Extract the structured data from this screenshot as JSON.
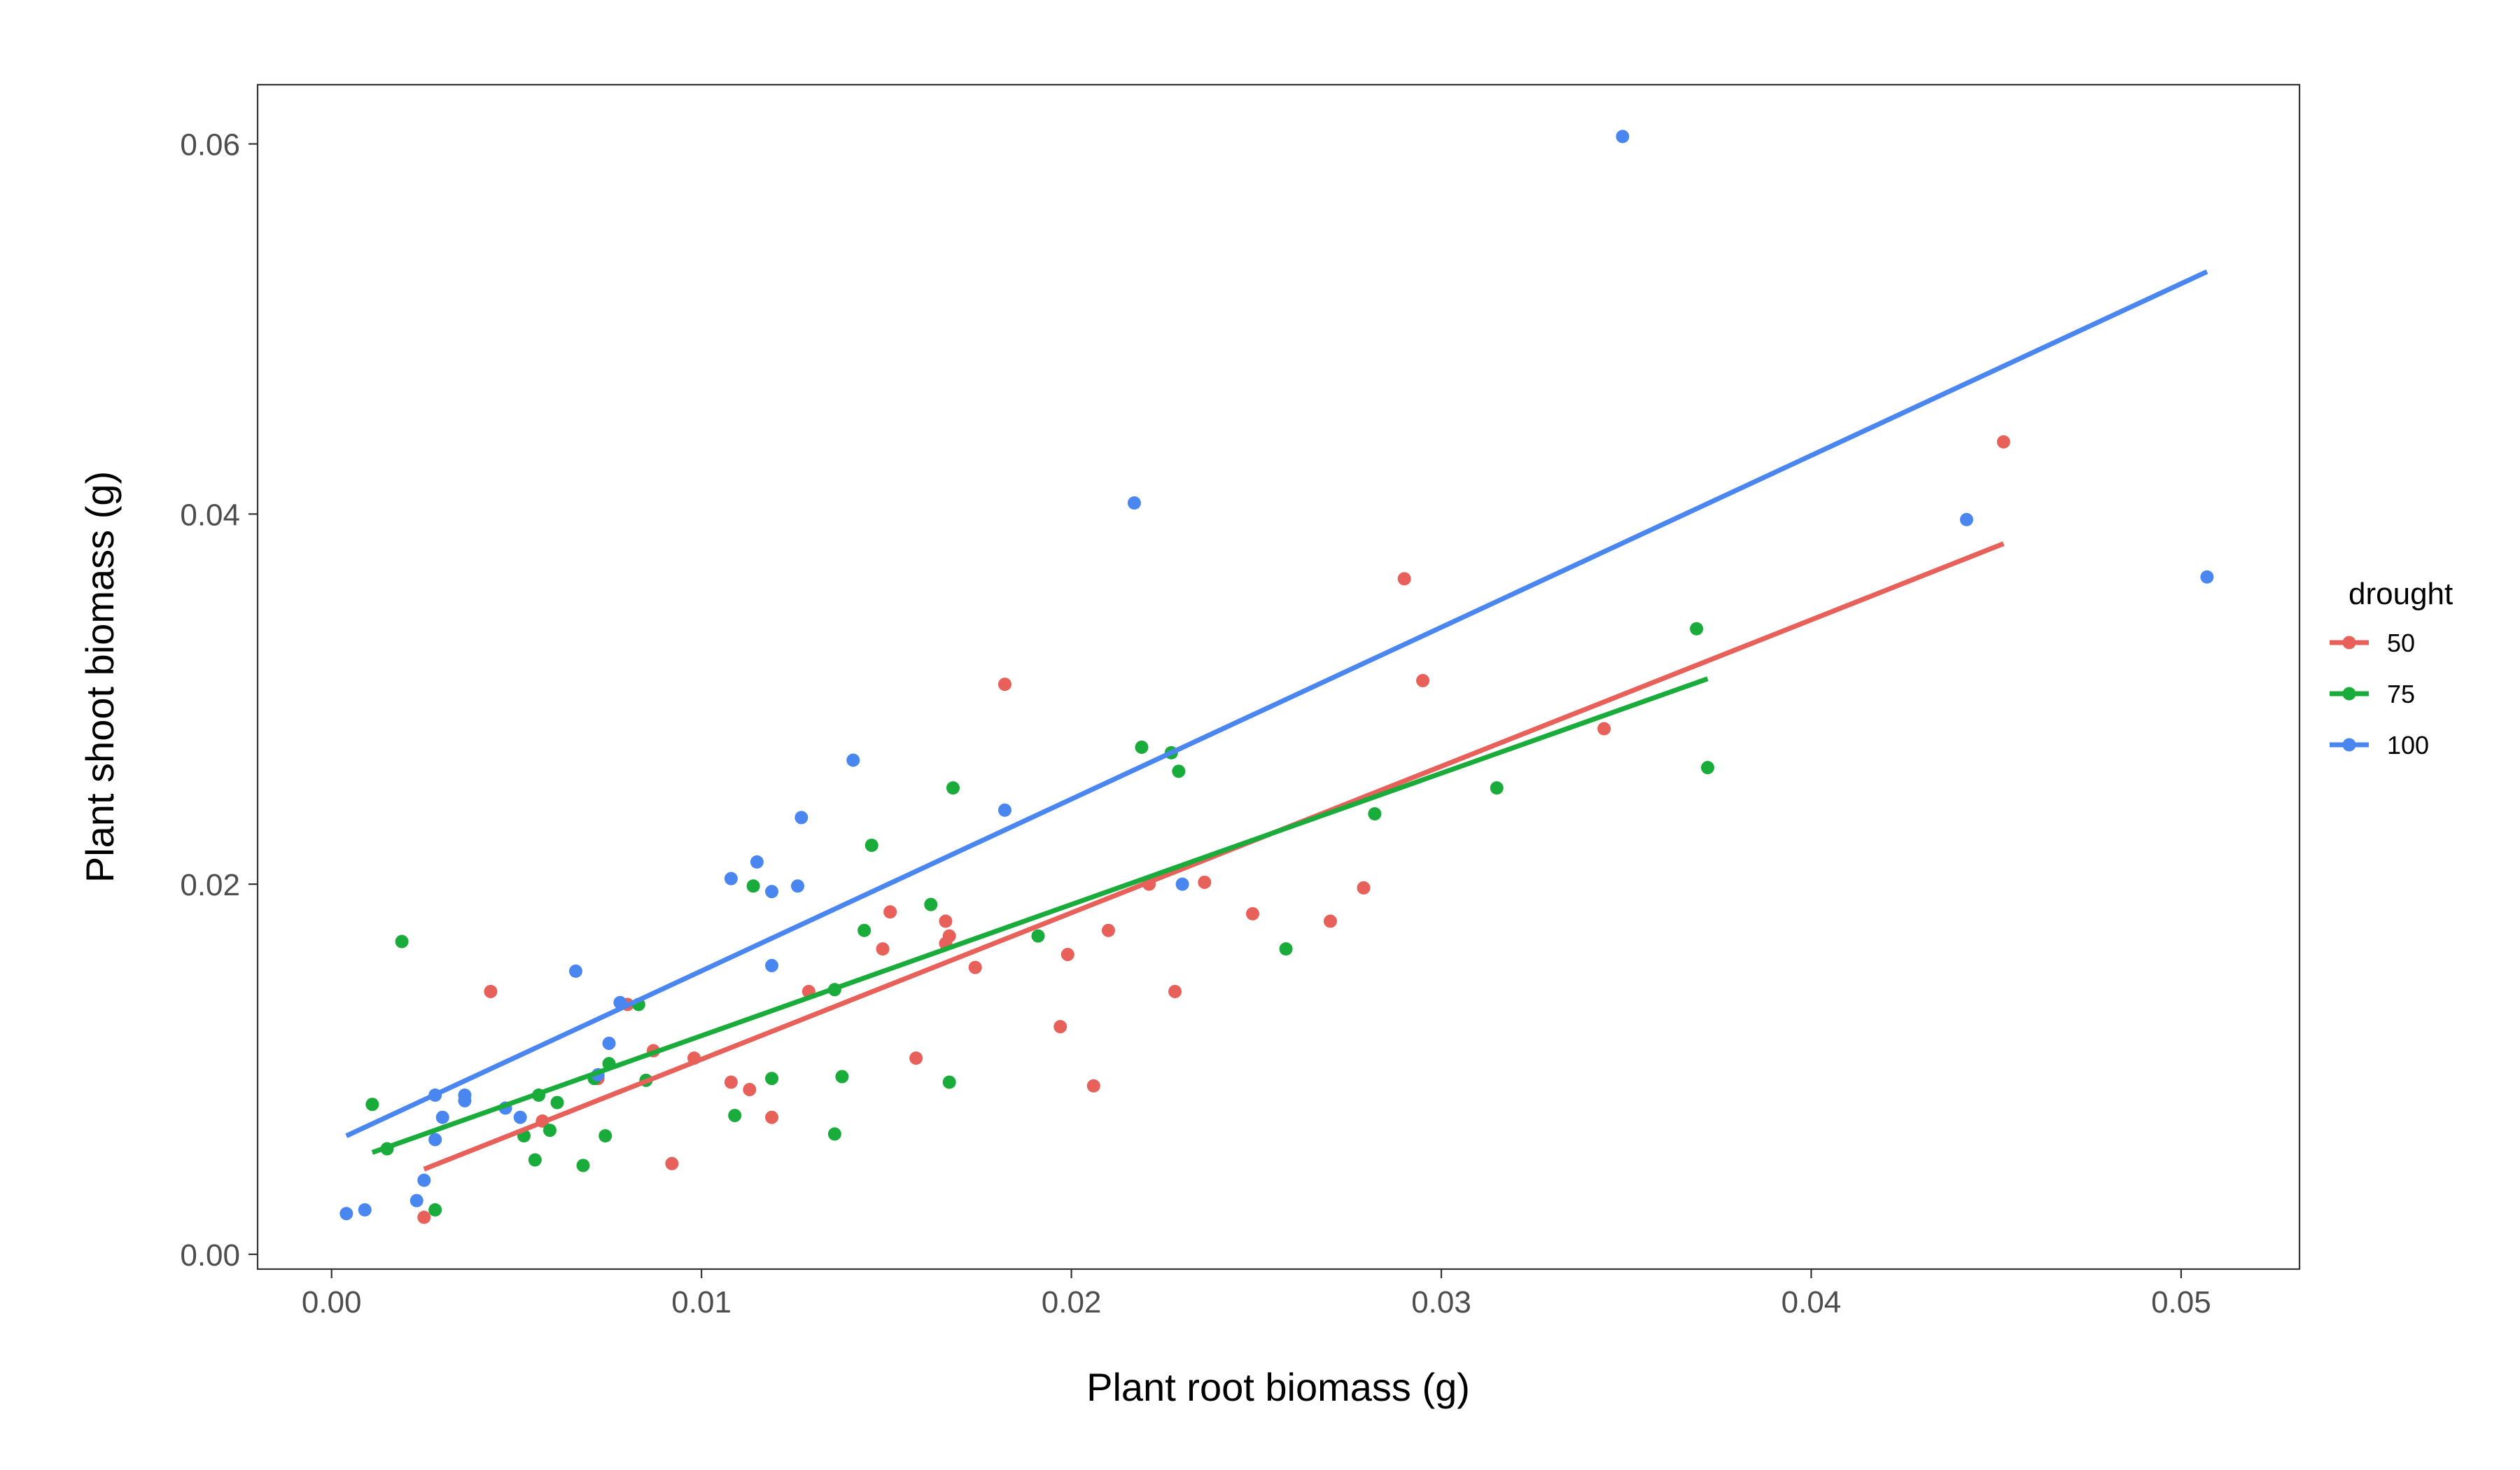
{
  "chart_data": {
    "type": "scatter",
    "title": "",
    "xlabel": "Plant root biomass (g)",
    "ylabel": "Plant shoot biomass (g)",
    "xlim": [
      -0.002,
      0.0532
    ],
    "ylim": [
      -0.0008,
      0.0632
    ],
    "xticks": [
      0,
      0.01,
      0.02,
      0.03,
      0.04,
      0.05
    ],
    "xtick_labels": [
      "0.00",
      "0.01",
      "0.02",
      "0.03",
      "0.04",
      "0.05"
    ],
    "yticks": [
      0,
      0.02,
      0.04,
      0.06
    ],
    "ytick_labels": [
      "0.00",
      "0.02",
      "0.04",
      "0.06"
    ],
    "grid": false,
    "legend": {
      "title": "drought",
      "position": "right"
    },
    "series": [
      {
        "name": "50",
        "color": "#e8605a",
        "points": [
          [
            0.0025,
            0.002
          ],
          [
            0.0043,
            0.0142
          ],
          [
            0.0057,
            0.0072
          ],
          [
            0.0072,
            0.0095
          ],
          [
            0.008,
            0.0135
          ],
          [
            0.0087,
            0.011
          ],
          [
            0.0092,
            0.0049
          ],
          [
            0.0098,
            0.0106
          ],
          [
            0.0108,
            0.0093
          ],
          [
            0.0113,
            0.0089
          ],
          [
            0.0119,
            0.0074
          ],
          [
            0.0129,
            0.0142
          ],
          [
            0.0149,
            0.0165
          ],
          [
            0.0151,
            0.0185
          ],
          [
            0.0158,
            0.0106
          ],
          [
            0.0166,
            0.018
          ],
          [
            0.0166,
            0.0168
          ],
          [
            0.0167,
            0.0172
          ],
          [
            0.0174,
            0.0155
          ],
          [
            0.0182,
            0.0308
          ],
          [
            0.0197,
            0.0123
          ],
          [
            0.0199,
            0.0162
          ],
          [
            0.0206,
            0.0091
          ],
          [
            0.021,
            0.0175
          ],
          [
            0.0221,
            0.02
          ],
          [
            0.0228,
            0.0142
          ],
          [
            0.0236,
            0.0201
          ],
          [
            0.0249,
            0.0184
          ],
          [
            0.027,
            0.018
          ],
          [
            0.0279,
            0.0198
          ],
          [
            0.029,
            0.0365
          ],
          [
            0.0295,
            0.031
          ],
          [
            0.0344,
            0.0284
          ],
          [
            0.0452,
            0.0439
          ]
        ],
        "trend": [
          [
            0.0025,
            0.0046
          ],
          [
            0.0452,
            0.0384
          ]
        ]
      },
      {
        "name": "75",
        "color": "#1aac3a",
        "points": [
          [
            0.0011,
            0.0081
          ],
          [
            0.0015,
            0.0057
          ],
          [
            0.0019,
            0.0169
          ],
          [
            0.0028,
            0.0024
          ],
          [
            0.0052,
            0.0064
          ],
          [
            0.0055,
            0.0051
          ],
          [
            0.0056,
            0.0086
          ],
          [
            0.0059,
            0.0067
          ],
          [
            0.0061,
            0.0082
          ],
          [
            0.0068,
            0.0048
          ],
          [
            0.0071,
            0.0095
          ],
          [
            0.0074,
            0.0064
          ],
          [
            0.0075,
            0.0103
          ],
          [
            0.0083,
            0.0135
          ],
          [
            0.0085,
            0.0094
          ],
          [
            0.0109,
            0.0075
          ],
          [
            0.0114,
            0.0199
          ],
          [
            0.0119,
            0.0095
          ],
          [
            0.0136,
            0.0065
          ],
          [
            0.0136,
            0.0143
          ],
          [
            0.0138,
            0.0096
          ],
          [
            0.0144,
            0.0175
          ],
          [
            0.0146,
            0.0221
          ],
          [
            0.0162,
            0.0189
          ],
          [
            0.0167,
            0.0093
          ],
          [
            0.0168,
            0.0252
          ],
          [
            0.0191,
            0.0172
          ],
          [
            0.0219,
            0.0274
          ],
          [
            0.0227,
            0.0271
          ],
          [
            0.0229,
            0.0261
          ],
          [
            0.0258,
            0.0165
          ],
          [
            0.0282,
            0.0238
          ],
          [
            0.0315,
            0.0252
          ],
          [
            0.0369,
            0.0338
          ],
          [
            0.0372,
            0.0263
          ]
        ],
        "trend": [
          [
            0.0011,
            0.0055
          ],
          [
            0.0372,
            0.0311
          ]
        ]
      },
      {
        "name": "100",
        "color": "#4a86f0",
        "points": [
          [
            0.0004,
            0.0022
          ],
          [
            0.0009,
            0.0024
          ],
          [
            0.0023,
            0.0029
          ],
          [
            0.0025,
            0.004
          ],
          [
            0.0028,
            0.0086
          ],
          [
            0.0028,
            0.0062
          ],
          [
            0.003,
            0.0074
          ],
          [
            0.0036,
            0.0086
          ],
          [
            0.0036,
            0.0083
          ],
          [
            0.0047,
            0.0079
          ],
          [
            0.0051,
            0.0074
          ],
          [
            0.0066,
            0.0153
          ],
          [
            0.0072,
            0.0097
          ],
          [
            0.0075,
            0.0114
          ],
          [
            0.0078,
            0.0136
          ],
          [
            0.0108,
            0.0203
          ],
          [
            0.0115,
            0.0212
          ],
          [
            0.0119,
            0.0196
          ],
          [
            0.0119,
            0.0156
          ],
          [
            0.0126,
            0.0199
          ],
          [
            0.0127,
            0.0236
          ],
          [
            0.0141,
            0.0267
          ],
          [
            0.0182,
            0.024
          ],
          [
            0.0217,
            0.0406
          ],
          [
            0.023,
            0.02
          ],
          [
            0.0349,
            0.0604
          ],
          [
            0.0442,
            0.0397
          ],
          [
            0.0507,
            0.0366
          ]
        ],
        "trend": [
          [
            0.0004,
            0.0064
          ],
          [
            0.0507,
            0.0531
          ]
        ]
      }
    ]
  }
}
